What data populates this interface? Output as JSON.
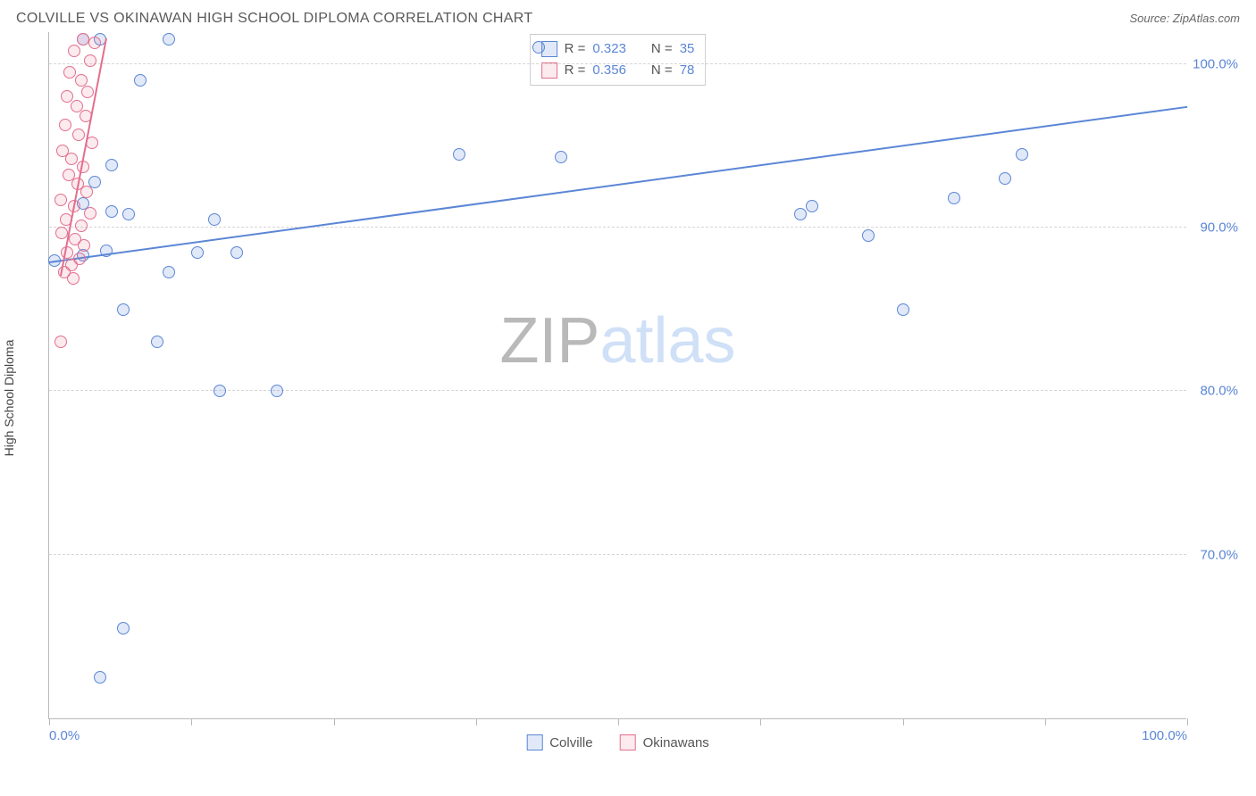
{
  "header": {
    "title": "COLVILLE VS OKINAWAN HIGH SCHOOL DIPLOMA CORRELATION CHART",
    "source": "Source: ZipAtlas.com"
  },
  "ylabel": "High School Diploma",
  "watermark": {
    "part1": "ZIP",
    "part2": "atlas"
  },
  "chart": {
    "type": "scatter",
    "xlim": [
      0,
      100
    ],
    "ylim": [
      60,
      102
    ],
    "background_color": "#ffffff",
    "grid_color": "#d6d6d6",
    "axis_color": "#b9b9b9",
    "tick_label_color": "#5b86d6",
    "tick_fontsize": 15,
    "y_gridlines": [
      70,
      80,
      90,
      100
    ],
    "y_tick_labels": [
      "70.0%",
      "80.0%",
      "90.0%",
      "100.0%"
    ],
    "x_ticks": [
      0,
      12.5,
      25,
      37.5,
      50,
      62.5,
      75,
      87.5,
      100
    ],
    "x_tick_labels": {
      "0": "0.0%",
      "100": "100.0%"
    },
    "marker_radius": 7,
    "marker_stroke_width": 1.5,
    "marker_fill_opacity": 0.18,
    "series": [
      {
        "name": "Colville",
        "color": "#5b86d6",
        "fill": "rgba(91,134,214,0.18)",
        "r_value": "0.323",
        "n_value": "35",
        "trend": {
          "x1": 0,
          "y1": 87.8,
          "x2": 100,
          "y2": 97.3,
          "width": 2
        },
        "points": [
          [
            3.0,
            101.5
          ],
          [
            4.5,
            101.5
          ],
          [
            10.5,
            101.5
          ],
          [
            43.0,
            101.0
          ],
          [
            8.0,
            99.0
          ],
          [
            36.0,
            94.5
          ],
          [
            45.0,
            94.3
          ],
          [
            85.5,
            94.5
          ],
          [
            5.5,
            93.8
          ],
          [
            4.0,
            92.8
          ],
          [
            84.0,
            93.0
          ],
          [
            3.0,
            91.5
          ],
          [
            79.5,
            91.8
          ],
          [
            67.0,
            91.3
          ],
          [
            5.5,
            91.0
          ],
          [
            66.0,
            90.8
          ],
          [
            7.0,
            90.8
          ],
          [
            14.5,
            90.5
          ],
          [
            72.0,
            89.5
          ],
          [
            3.0,
            88.3
          ],
          [
            0.5,
            88.0
          ],
          [
            5.0,
            88.6
          ],
          [
            13.0,
            88.5
          ],
          [
            16.5,
            88.5
          ],
          [
            10.5,
            87.3
          ],
          [
            6.5,
            85.0
          ],
          [
            75.0,
            85.0
          ],
          [
            9.5,
            83.0
          ],
          [
            15.0,
            80.0
          ],
          [
            20.0,
            80.0
          ],
          [
            6.5,
            65.5
          ],
          [
            4.5,
            62.5
          ]
        ]
      },
      {
        "name": "Okinawans",
        "color": "#e36f8d",
        "fill": "rgba(227,111,141,0.15)",
        "r_value": "0.356",
        "n_value": "78",
        "trend": {
          "x1": 1.0,
          "y1": 87.0,
          "x2": 5.0,
          "y2": 101.5,
          "width": 2
        },
        "points": [
          [
            3.0,
            101.5
          ],
          [
            4.0,
            101.3
          ],
          [
            2.2,
            100.8
          ],
          [
            3.6,
            100.2
          ],
          [
            1.8,
            99.5
          ],
          [
            2.8,
            99.0
          ],
          [
            3.4,
            98.3
          ],
          [
            1.6,
            98.0
          ],
          [
            2.4,
            97.4
          ],
          [
            3.2,
            96.8
          ],
          [
            1.4,
            96.3
          ],
          [
            2.6,
            95.7
          ],
          [
            3.8,
            95.2
          ],
          [
            1.2,
            94.7
          ],
          [
            2.0,
            94.2
          ],
          [
            3.0,
            93.7
          ],
          [
            1.7,
            93.2
          ],
          [
            2.5,
            92.7
          ],
          [
            3.3,
            92.2
          ],
          [
            1.0,
            91.7
          ],
          [
            2.2,
            91.3
          ],
          [
            3.6,
            90.9
          ],
          [
            1.5,
            90.5
          ],
          [
            2.8,
            90.1
          ],
          [
            1.1,
            89.7
          ],
          [
            2.3,
            89.3
          ],
          [
            3.1,
            88.9
          ],
          [
            1.6,
            88.5
          ],
          [
            2.7,
            88.1
          ],
          [
            2.0,
            87.7
          ],
          [
            1.3,
            87.3
          ],
          [
            2.1,
            86.9
          ],
          [
            1.0,
            83.0
          ]
        ]
      }
    ],
    "legend_stats": {
      "r_label": "R =",
      "n_label": "N ="
    },
    "bottom_legend": [
      "Colville",
      "Okinawans"
    ]
  }
}
